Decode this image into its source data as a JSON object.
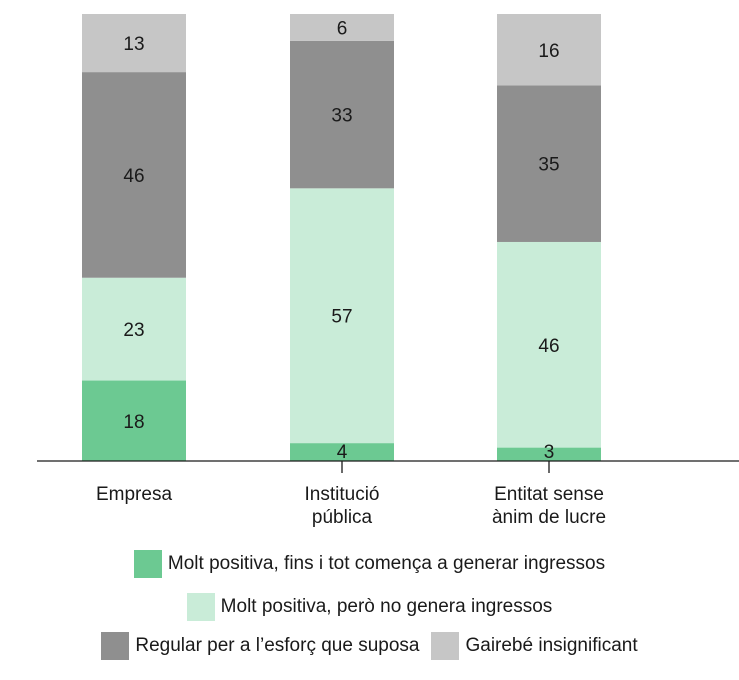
{
  "chart_data": {
    "type": "bar",
    "stacked": true,
    "categories": [
      "Empresa",
      "Institució\npública",
      "Entitat sense\nànim de lucre"
    ],
    "series": [
      {
        "name": "Molt positiva, fins i tot comença a generar ingressos",
        "color": "#6cc992",
        "values": [
          18,
          4,
          3
        ]
      },
      {
        "name": "Molt positiva, però no genera ingressos",
        "color": "#c9ecd8",
        "values": [
          23,
          57,
          46
        ]
      },
      {
        "name": "Regular per a l’esforç que suposa",
        "color": "#8f8f8f",
        "values": [
          46,
          33,
          35
        ]
      },
      {
        "name": "Gairebé insignificant",
        "color": "#c6c6c6",
        "values": [
          13,
          6,
          16
        ]
      }
    ],
    "ylim": [
      0,
      100
    ],
    "grid": false,
    "legend_position": "bottom"
  }
}
